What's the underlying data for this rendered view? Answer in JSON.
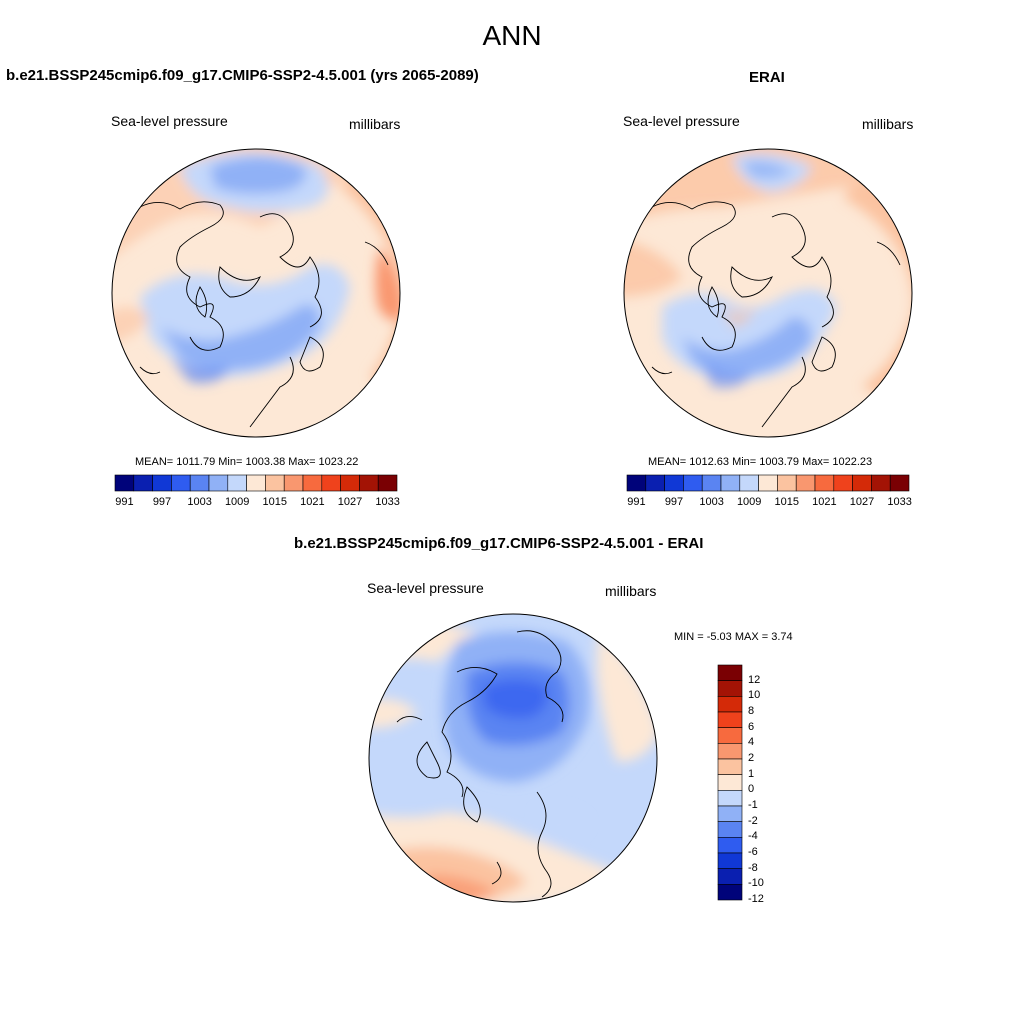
{
  "title": "ANN",
  "panels": {
    "model": {
      "title": "b.e21.BSSP245cmip6.f09_g17.CMIP6-SSP2-4.5.001 (yrs 2065-2089)",
      "variable": "Sea-level pressure",
      "units": "millibars",
      "stats": "MEAN= 1011.79  Min= 1003.38  Max= 1023.22"
    },
    "obs": {
      "title": "ERAI",
      "variable": "Sea-level pressure",
      "units": "millibars",
      "stats": "MEAN= 1012.63  Min= 1003.79  Max= 1022.23"
    },
    "diff": {
      "title": "b.e21.BSSP245cmip6.f09_g17.CMIP6-SSP2-4.5.001 - ERAI",
      "variable": "Sea-level pressure",
      "units": "millibars",
      "stats": "MIN =  -5.03 MAX =   3.74"
    }
  },
  "colorbar_abs": {
    "colors": [
      "#00037a",
      "#0a1fb0",
      "#1038d6",
      "#2f5cf0",
      "#5a84f2",
      "#90b1f6",
      "#c4d8fb",
      "#fde8d6",
      "#fbc3a0",
      "#f9976f",
      "#f76a3e",
      "#ef421c",
      "#d42a08",
      "#a31305",
      "#7a0003"
    ],
    "labels": [
      "991",
      "997",
      "1003",
      "1009",
      "1015",
      "1021",
      "1027",
      "1033"
    ]
  },
  "colorbar_diff": {
    "colors": [
      "#7a0003",
      "#a31305",
      "#d42a08",
      "#ef421c",
      "#f76a3e",
      "#f9976f",
      "#fbc3a0",
      "#fde8d6",
      "#c4d8fb",
      "#90b1f6",
      "#5a84f2",
      "#2f5cf0",
      "#1038d6",
      "#0a1fb0",
      "#00037a"
    ],
    "labels": [
      "12",
      "10",
      "8",
      "6",
      "4",
      "2",
      "1",
      "0",
      "-1",
      "-2",
      "-4",
      "-6",
      "-8",
      "-10",
      "-12"
    ]
  }
}
